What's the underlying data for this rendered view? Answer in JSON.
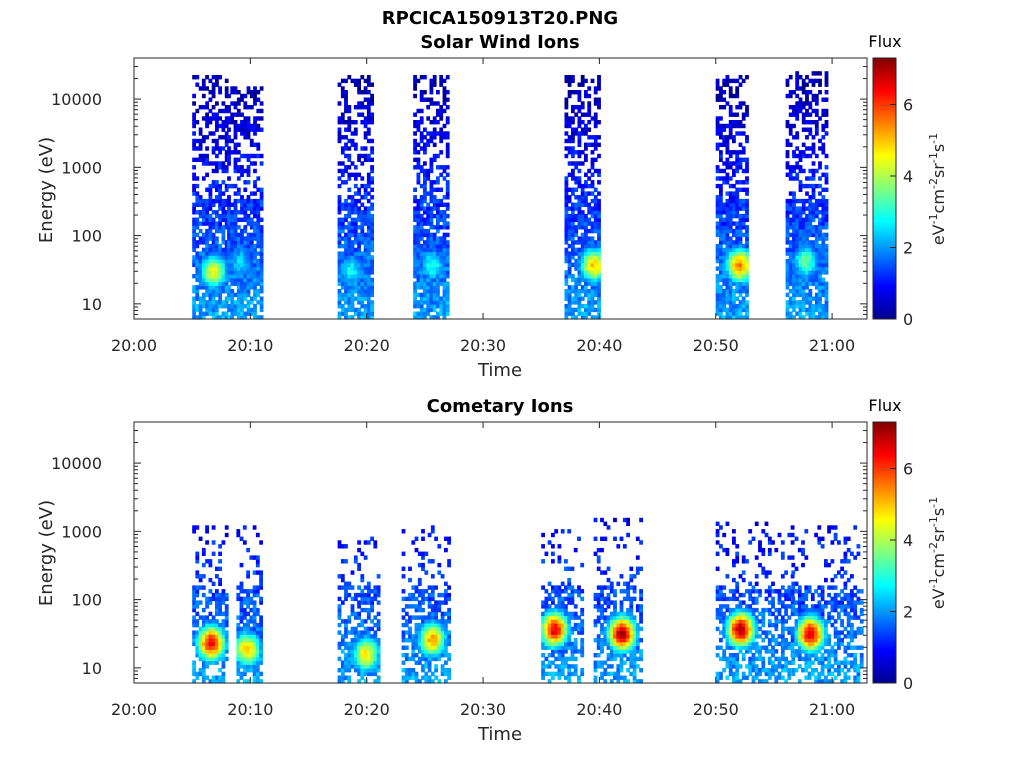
{
  "figure_title": "RPCICA150913T20.PNG",
  "chart_data": [
    {
      "type": "heatmap",
      "title": "Solar Wind Ions",
      "xlabel": "Time",
      "ylabel": "Energy (eV)",
      "x_ticks": [
        "20:00",
        "20:10",
        "20:20",
        "20:30",
        "20:40",
        "20:50",
        "21:00"
      ],
      "x_range_minutes": [
        0,
        63
      ],
      "y_scale": "log",
      "y_ticks": [
        "10",
        "100",
        "1000",
        "10000"
      ],
      "y_range": [
        6,
        40000
      ],
      "colorbar": {
        "label": "Flux",
        "unit": "eV^-1cm^-2sr^-1s^-1",
        "range": [
          0,
          7.3
        ],
        "ticks": [
          "0",
          "2",
          "4",
          "6"
        ],
        "colormap": "jet"
      },
      "bursts": [
        {
          "t_start": 5.0,
          "t_end": 8.0,
          "e_max": 20000,
          "peak_minute": 6.7,
          "peak_energy_ev": 28,
          "peak_flux": 4.5
        },
        {
          "t_start": 8.0,
          "t_end": 11.0,
          "e_max": 15000,
          "peak_minute": 9.0,
          "peak_energy_ev": 40,
          "peak_flux": 2.5
        },
        {
          "t_start": 17.5,
          "t_end": 20.5,
          "e_max": 20000,
          "peak_minute": 18.5,
          "peak_energy_ev": 30,
          "peak_flux": 2.8
        },
        {
          "t_start": 24.0,
          "t_end": 27.0,
          "e_max": 20000,
          "peak_minute": 25.5,
          "peak_energy_ev": 35,
          "peak_flux": 3.0
        },
        {
          "t_start": 37.0,
          "t_end": 40.0,
          "e_max": 20000,
          "peak_minute": 39.4,
          "peak_energy_ev": 35,
          "peak_flux": 5.0
        },
        {
          "t_start": 50.0,
          "t_end": 52.8,
          "e_max": 20000,
          "peak_minute": 51.9,
          "peak_energy_ev": 35,
          "peak_flux": 5.5
        },
        {
          "t_start": 56.0,
          "t_end": 59.5,
          "e_max": 25000,
          "peak_minute": 57.6,
          "peak_energy_ev": 40,
          "peak_flux": 3.5
        }
      ]
    },
    {
      "type": "heatmap",
      "title": "Cometary Ions",
      "xlabel": "Time",
      "ylabel": "Energy (eV)",
      "x_ticks": [
        "20:00",
        "20:10",
        "20:20",
        "20:30",
        "20:40",
        "20:50",
        "21:00"
      ],
      "x_range_minutes": [
        0,
        63
      ],
      "y_scale": "log",
      "y_ticks": [
        "10",
        "100",
        "1000",
        "10000"
      ],
      "y_range": [
        6,
        40000
      ],
      "colorbar": {
        "label": "Flux",
        "unit": "eV^-1cm^-2sr^-1s^-1",
        "range": [
          0,
          7.3
        ],
        "ticks": [
          "0",
          "2",
          "4",
          "6"
        ],
        "colormap": "jet"
      },
      "bursts": [
        {
          "t_start": 5.0,
          "t_end": 8.0,
          "e_max": 1200,
          "peak_minute": 6.5,
          "peak_energy_ev": 22,
          "peak_flux": 6.5
        },
        {
          "t_start": 8.8,
          "t_end": 11.0,
          "e_max": 1200,
          "peak_minute": 9.6,
          "peak_energy_ev": 18,
          "peak_flux": 5.0
        },
        {
          "t_start": 17.5,
          "t_end": 21.0,
          "e_max": 800,
          "peak_minute": 19.8,
          "peak_energy_ev": 15,
          "peak_flux": 4.8
        },
        {
          "t_start": 23.0,
          "t_end": 27.0,
          "e_max": 1200,
          "peak_minute": 25.5,
          "peak_energy_ev": 25,
          "peak_flux": 5.2
        },
        {
          "t_start": 35.0,
          "t_end": 38.5,
          "e_max": 1000,
          "peak_minute": 36.0,
          "peak_energy_ev": 35,
          "peak_flux": 6.6
        },
        {
          "t_start": 39.5,
          "t_end": 43.5,
          "e_max": 1500,
          "peak_minute": 41.8,
          "peak_energy_ev": 30,
          "peak_flux": 7.0
        },
        {
          "t_start": 50.0,
          "t_end": 56.5,
          "e_max": 1300,
          "peak_minute": 52.0,
          "peak_energy_ev": 35,
          "peak_flux": 7.0
        },
        {
          "t_start": 56.5,
          "t_end": 62.5,
          "e_max": 1200,
          "peak_minute": 58.0,
          "peak_energy_ev": 30,
          "peak_flux": 6.8
        }
      ]
    }
  ]
}
